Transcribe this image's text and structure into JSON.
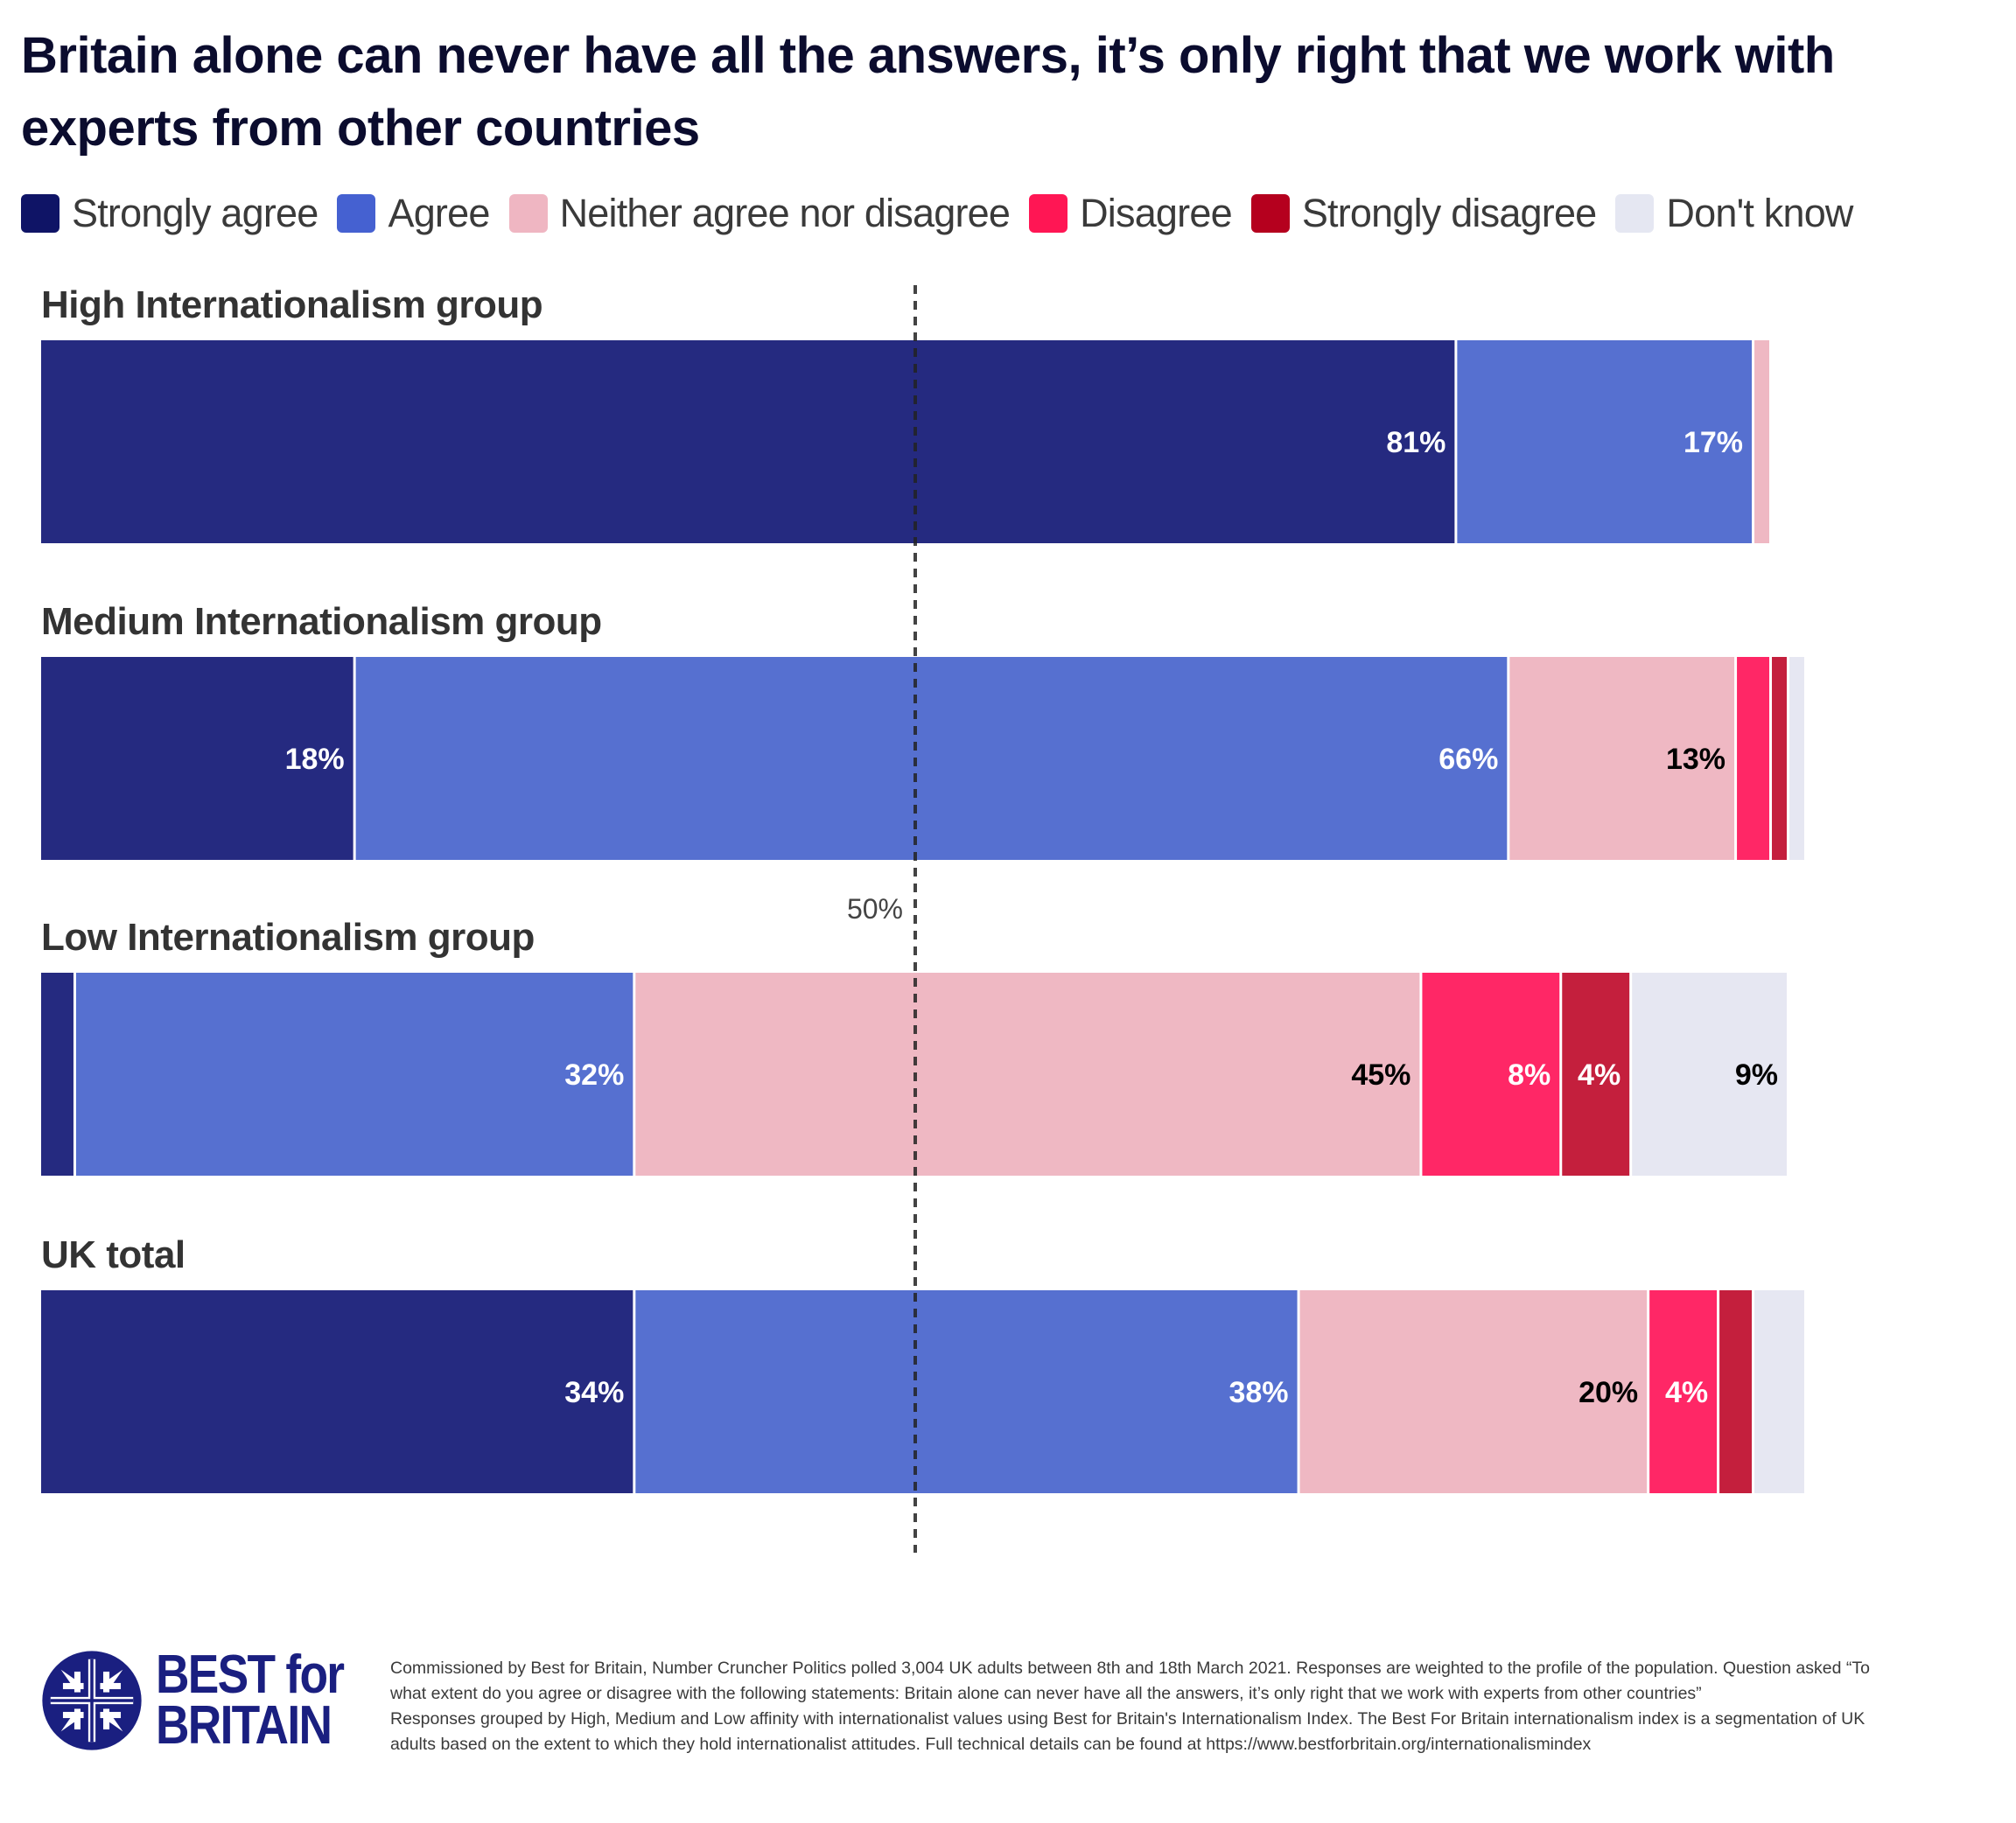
{
  "header": {
    "title": "Britain alone can never have all the answers, it’s only right that we work with experts from other countries"
  },
  "legend": [
    {
      "label": "Strongly agree",
      "color": "#0f1466"
    },
    {
      "label": "Agree",
      "color": "#4561d1"
    },
    {
      "label": "Neither agree nor disagree",
      "color": "#efb6c2"
    },
    {
      "label": "Disagree",
      "color": "#ff1654"
    },
    {
      "label": "Strongly disagree",
      "color": "#b5001e"
    },
    {
      "label": "Don't know",
      "color": "#e5e7f2"
    }
  ],
  "chart_data": {
    "type": "bar",
    "orientation": "horizontal",
    "stacked": true,
    "title": "Britain alone can never have all the answers, it’s only right that we work with experts from other countries",
    "xlabel": "",
    "ylabel": "",
    "xlim": [
      0,
      100
    ],
    "grid": false,
    "legend_position": "top",
    "categories": [
      "High Internationalism group",
      "Medium Internationalism group",
      "Low Internationalism group",
      "UK total"
    ],
    "series": [
      {
        "name": "Strongly agree",
        "color": "#252a80",
        "label_color": "#ffffff",
        "values": [
          81,
          18,
          2,
          34
        ],
        "labels": [
          "81%",
          "18%",
          "",
          "34%"
        ]
      },
      {
        "name": "Agree",
        "color": "#5670d0",
        "label_color": "#ffffff",
        "values": [
          17,
          66,
          32,
          38
        ],
        "labels": [
          "17%",
          "66%",
          "32%",
          "38%"
        ]
      },
      {
        "name": "Neither agree nor disagree",
        "color": "#efb8c3",
        "label_color": "#000000",
        "values": [
          1,
          13,
          45,
          20
        ],
        "labels": [
          "",
          "13%",
          "45%",
          "20%"
        ]
      },
      {
        "name": "Disagree",
        "color": "#ff2766",
        "label_color": "#ffffff",
        "values": [
          0,
          2,
          8,
          4
        ],
        "labels": [
          "",
          "",
          "8%",
          "4%"
        ]
      },
      {
        "name": "Strongly disagree",
        "color": "#c41f3d",
        "label_color": "#ffffff",
        "values": [
          0,
          1,
          4,
          2
        ],
        "labels": [
          "",
          "",
          "4%",
          ""
        ]
      },
      {
        "name": "Don't know",
        "color": "#e6e7f2",
        "label_color": "#000000",
        "values": [
          0,
          1,
          9,
          3
        ],
        "labels": [
          "",
          "",
          "9%",
          ""
        ]
      }
    ],
    "reference_line": {
      "value": 50,
      "label": "50%",
      "style": "dotted"
    }
  },
  "footer": {
    "logo_line1": "BEST for",
    "logo_line2": "BRITAIN",
    "note_lines": [
      "Commissioned by Best for Britain, Number Cruncher Politics polled 3,004 UK adults between 8th and 18th March 2021. Responses are weighted to the profile of the population. Question asked “To",
      "what extent do you agree or disagree with the following statements: Britain alone can never have all the answers, it’s only right that we work with experts from other countries”",
      "Responses grouped by High, Medium and Low affinity with internationalist values using Best for Britain's Internationalism Index. The Best For Britain internationalism index is a segmentation of UK",
      "adults based on the extent to which they hold internationalist attitudes. Full technical details can be found at https://www.bestforbritain.org/internationalismindex"
    ]
  }
}
